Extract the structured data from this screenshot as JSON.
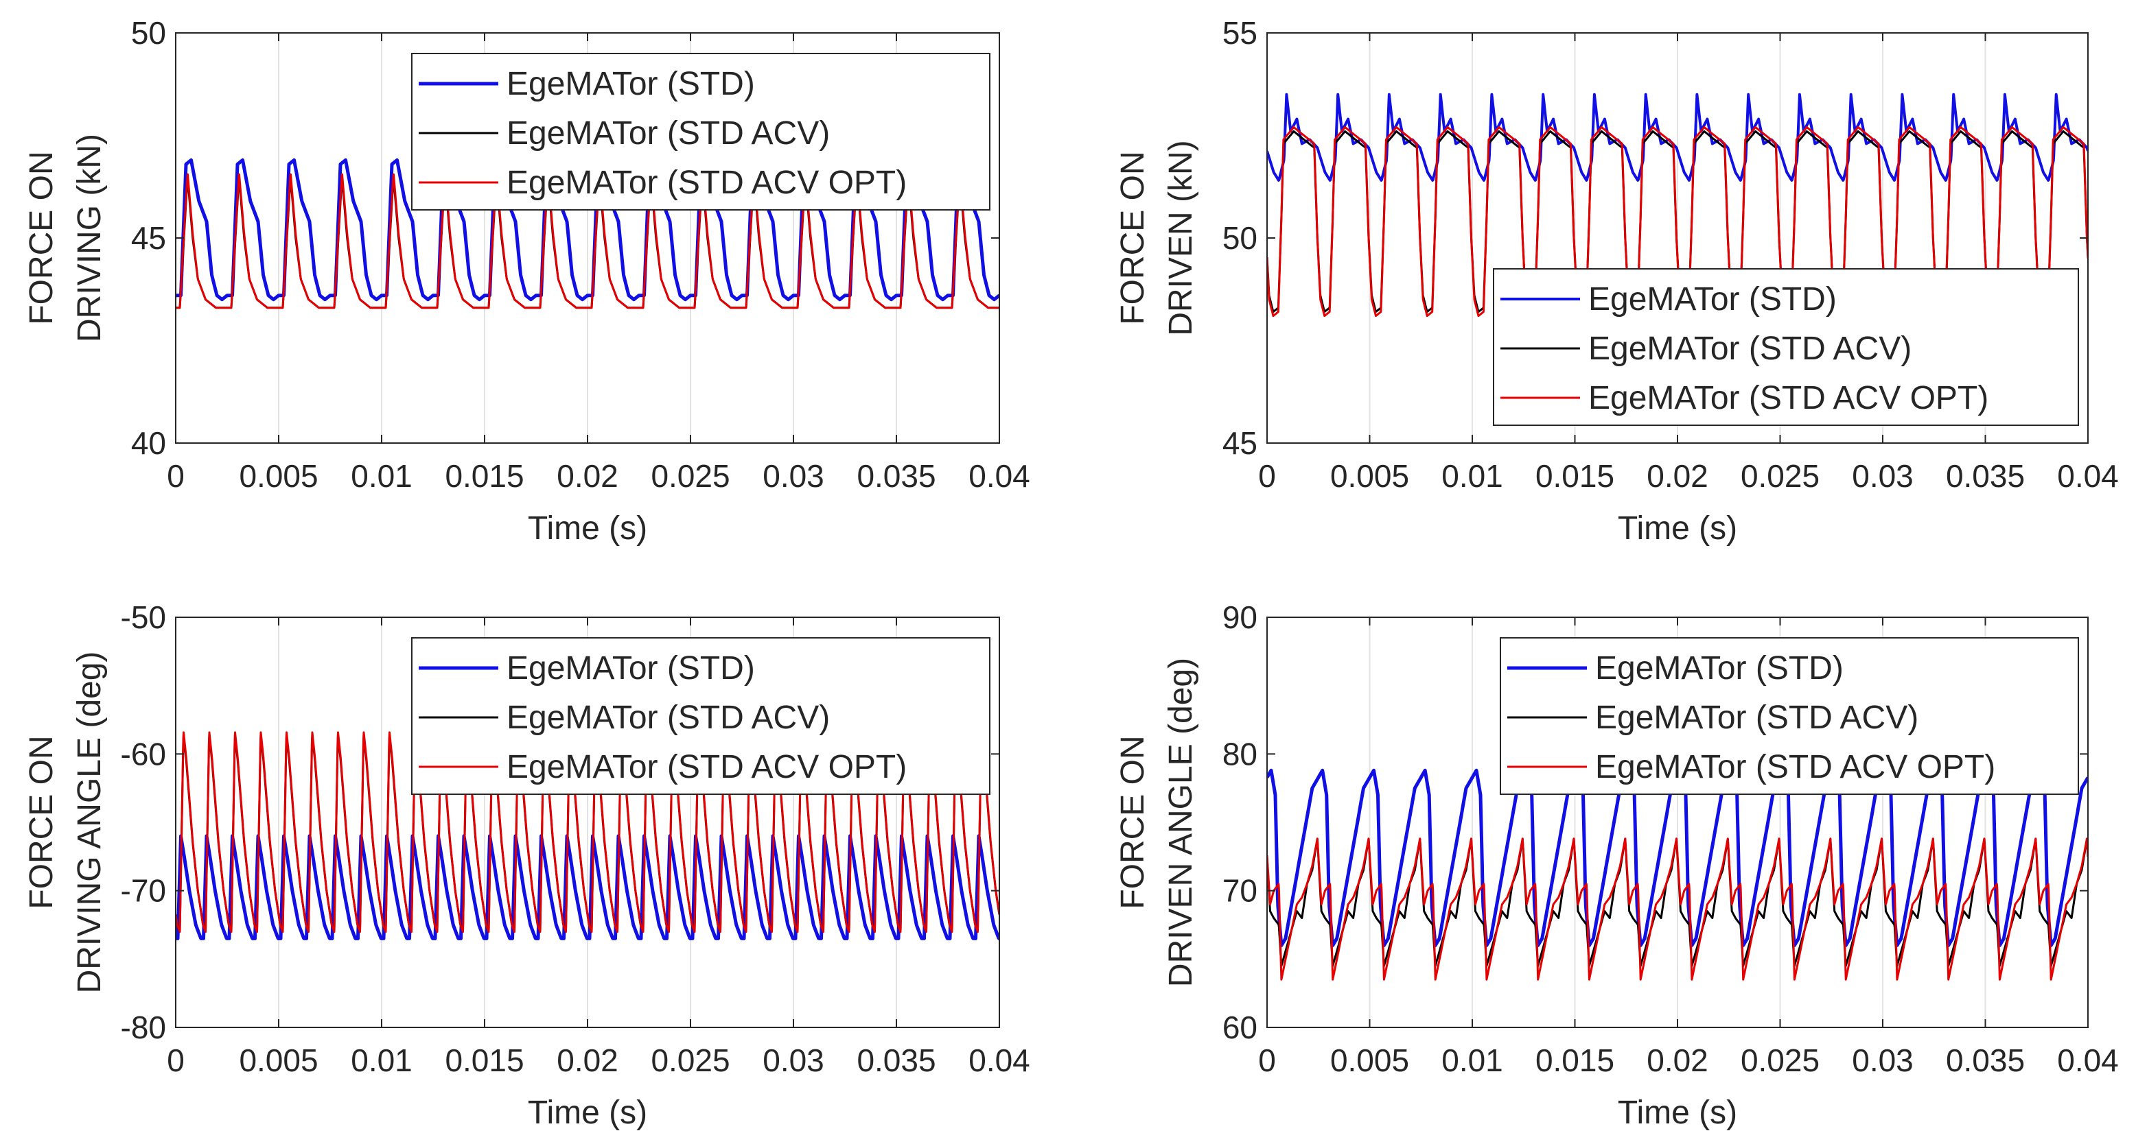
{
  "figure": {
    "background": "#ffffff",
    "axis_color": "#262626",
    "grid_color": "#e3e3e3"
  },
  "chart_data": [
    {
      "type": "line",
      "ylabel": [
        "FORCE ON",
        "DRIVING (kN)"
      ],
      "xlabel": "Time (s)",
      "xlim": [
        0,
        0.04
      ],
      "ylim": [
        40,
        50
      ],
      "xticks": [
        0,
        0.005,
        0.01,
        0.015,
        0.02,
        0.025,
        0.03,
        0.035,
        0.04
      ],
      "xtick_labels": [
        "0",
        "0.005",
        "0.01",
        "0.015",
        "0.02",
        "0.025",
        "0.03",
        "0.035",
        "0.04"
      ],
      "yticks": [
        40,
        45,
        50
      ],
      "ytick_labels": [
        "40",
        "45",
        "50"
      ],
      "grid": "x-only",
      "legend": {
        "location": "top-right",
        "entries": [
          "EgeMATor (STD)",
          "EgeMATor (STD ACV)",
          "EgeMATor (STD ACV OPT)"
        ]
      },
      "period_s": 0.0025,
      "series": [
        {
          "name": "EgeMATor (STD)",
          "color": "#1010e6",
          "width": 5,
          "wave": {
            "phase": 0.00025,
            "keys": [
              [
                0,
                43.6
              ],
              [
                0.1,
                46.8
              ],
              [
                0.2,
                46.9
              ],
              [
                0.35,
                45.9
              ],
              [
                0.5,
                45.4
              ],
              [
                0.6,
                44.1
              ],
              [
                0.7,
                43.6
              ],
              [
                0.8,
                43.5
              ],
              [
                0.9,
                43.6
              ],
              [
                1,
                43.6
              ]
            ]
          }
        },
        {
          "name": "EgeMATor (STD ACV)",
          "color": "#000000",
          "width": 3,
          "wave": {
            "phase": 0.0002,
            "keys": [
              [
                0,
                43.3
              ],
              [
                0.15,
                46.5
              ],
              [
                0.25,
                45.0
              ],
              [
                0.35,
                44.0
              ],
              [
                0.5,
                43.5
              ],
              [
                0.7,
                43.3
              ],
              [
                1,
                43.3
              ]
            ]
          }
        },
        {
          "name": "EgeMATor (STD ACV OPT)",
          "color": "#e60000",
          "width": 3,
          "wave": {
            "phase": 0.0002,
            "keys": [
              [
                0,
                43.3
              ],
              [
                0.15,
                46.6
              ],
              [
                0.25,
                45.1
              ],
              [
                0.35,
                44.0
              ],
              [
                0.5,
                43.5
              ],
              [
                0.7,
                43.3
              ],
              [
                1,
                43.3
              ]
            ]
          }
        }
      ]
    },
    {
      "type": "line",
      "ylabel": [
        "FORCE ON",
        "DRIVEN (kN)"
      ],
      "xlabel": "Time (s)",
      "xlim": [
        0,
        0.04
      ],
      "ylim": [
        45,
        55
      ],
      "xticks": [
        0,
        0.005,
        0.01,
        0.015,
        0.02,
        0.025,
        0.03,
        0.035,
        0.04
      ],
      "xtick_labels": [
        "0",
        "0.005",
        "0.01",
        "0.015",
        "0.02",
        "0.025",
        "0.03",
        "0.035",
        "0.04"
      ],
      "yticks": [
        45,
        50,
        55
      ],
      "ytick_labels": [
        "45",
        "50",
        "55"
      ],
      "grid": "x-only",
      "legend": {
        "location": "lower-right",
        "entries": [
          "EgeMATor (STD)",
          "EgeMATor (STD ACV)",
          "EgeMATor (STD ACV OPT)"
        ]
      },
      "period_s": 0.0025,
      "series": [
        {
          "name": "EgeMATor (STD)",
          "color": "#1010e6",
          "width": 4,
          "wave": {
            "phase": 0.00095,
            "keys": [
              [
                0,
                53.5
              ],
              [
                0.08,
                52.6
              ],
              [
                0.2,
                52.9
              ],
              [
                0.3,
                52.3
              ],
              [
                0.45,
                52.4
              ],
              [
                0.6,
                52.2
              ],
              [
                0.75,
                51.6
              ],
              [
                0.85,
                51.4
              ],
              [
                0.95,
                51.9
              ],
              [
                1,
                53.5
              ]
            ]
          }
        },
        {
          "name": "EgeMATor (STD ACV)",
          "color": "#000000",
          "width": 3,
          "wave": {
            "phase": 0.0008,
            "keys": [
              [
                0,
                52.3
              ],
              [
                0.2,
                52.6
              ],
              [
                0.4,
                52.4
              ],
              [
                0.6,
                52.2
              ],
              [
                0.66,
                50.0
              ],
              [
                0.72,
                48.6
              ],
              [
                0.8,
                48.2
              ],
              [
                0.9,
                48.3
              ],
              [
                0.96,
                50.5
              ],
              [
                1,
                52.3
              ]
            ]
          }
        },
        {
          "name": "EgeMATor (STD ACV OPT)",
          "color": "#e60000",
          "width": 3,
          "wave": {
            "phase": 0.0008,
            "keys": [
              [
                0,
                52.4
              ],
              [
                0.2,
                52.7
              ],
              [
                0.4,
                52.5
              ],
              [
                0.6,
                52.3
              ],
              [
                0.66,
                50.0
              ],
              [
                0.72,
                48.5
              ],
              [
                0.8,
                48.1
              ],
              [
                0.9,
                48.2
              ],
              [
                0.96,
                50.5
              ],
              [
                1,
                52.4
              ]
            ]
          }
        }
      ]
    },
    {
      "type": "line",
      "ylabel": [
        "FORCE ON",
        "DRIVING ANGLE (deg)"
      ],
      "xlabel": "Time (s)",
      "xlim": [
        0,
        0.04
      ],
      "ylim": [
        -80,
        -50
      ],
      "xticks": [
        0,
        0.005,
        0.01,
        0.015,
        0.02,
        0.025,
        0.03,
        0.035,
        0.04
      ],
      "xtick_labels": [
        "0",
        "0.005",
        "0.01",
        "0.015",
        "0.02",
        "0.025",
        "0.03",
        "0.035",
        "0.04"
      ],
      "yticks": [
        -80,
        -70,
        -60,
        -50
      ],
      "ytick_labels": [
        "-80",
        "-70",
        "-60",
        "-50"
      ],
      "grid": "x-only",
      "legend": {
        "location": "top-right",
        "entries": [
          "EgeMATor (STD)",
          "EgeMATor (STD ACV)",
          "EgeMATor (STD ACV OPT)"
        ]
      },
      "period_s": 0.00125,
      "series": [
        {
          "name": "EgeMATor (STD)",
          "color": "#1010e6",
          "width": 5,
          "wave": {
            "phase": 0.0001,
            "keys": [
              [
                0,
                -73.5
              ],
              [
                0.12,
                -66.0
              ],
              [
                0.25,
                -67.5
              ],
              [
                0.45,
                -70.0
              ],
              [
                0.7,
                -72.5
              ],
              [
                0.9,
                -73.5
              ],
              [
                1,
                -73.5
              ]
            ]
          }
        },
        {
          "name": "EgeMATor (STD ACV)",
          "color": "#000000",
          "width": 3,
          "wave": {
            "phase": 0.0002,
            "keys": [
              [
                0,
                -73.0
              ],
              [
                0.14,
                -58.5
              ],
              [
                0.25,
                -60.5
              ],
              [
                0.5,
                -66.5
              ],
              [
                0.7,
                -70.0
              ],
              [
                0.9,
                -72.5
              ],
              [
                1,
                -73.0
              ]
            ]
          }
        },
        {
          "name": "EgeMATor (STD ACV OPT)",
          "color": "#e60000",
          "width": 3,
          "wave": {
            "phase": 0.0002,
            "keys": [
              [
                0,
                -73.0
              ],
              [
                0.14,
                -58.3
              ],
              [
                0.25,
                -60.3
              ],
              [
                0.5,
                -66.4
              ],
              [
                0.7,
                -70.0
              ],
              [
                0.9,
                -72.5
              ],
              [
                1,
                -73.0
              ]
            ]
          }
        }
      ]
    },
    {
      "type": "line",
      "ylabel": [
        "FORCE ON",
        "DRIVEN ANGLE (deg)"
      ],
      "xlabel": "Time (s)",
      "xlim": [
        0,
        0.04
      ],
      "ylim": [
        60,
        90
      ],
      "xticks": [
        0,
        0.005,
        0.01,
        0.015,
        0.02,
        0.025,
        0.03,
        0.035,
        0.04
      ],
      "xtick_labels": [
        "0",
        "0.005",
        "0.01",
        "0.015",
        "0.02",
        "0.025",
        "0.03",
        "0.035",
        "0.04"
      ],
      "yticks": [
        60,
        70,
        80,
        90
      ],
      "ytick_labels": [
        "60",
        "70",
        "80",
        "90"
      ],
      "grid": "x-only",
      "legend": {
        "location": "top-right",
        "entries": [
          "EgeMATor (STD)",
          "EgeMATor (STD ACV)",
          "EgeMATor (STD ACV OPT)"
        ]
      },
      "period_s": 0.0025,
      "series": [
        {
          "name": "EgeMATor (STD)",
          "color": "#1010e6",
          "width": 5,
          "wave": {
            "phase": 0.0007,
            "keys": [
              [
                0,
                66.0
              ],
              [
                0.08,
                66.5
              ],
              [
                0.6,
                77.5
              ],
              [
                0.8,
                78.8
              ],
              [
                0.88,
                77.0
              ],
              [
                0.93,
                69.0
              ],
              [
                1,
                66.0
              ]
            ]
          }
        },
        {
          "name": "EgeMATor (STD ACV)",
          "color": "#000000",
          "width": 3,
          "wave": {
            "phase": 0.0007,
            "keys": [
              [
                0,
                64.5
              ],
              [
                0.3,
                68.5
              ],
              [
                0.4,
                68.0
              ],
              [
                0.5,
                70.5
              ],
              [
                0.6,
                71.5
              ],
              [
                0.7,
                73.8
              ],
              [
                0.78,
                68.5
              ],
              [
                0.85,
                68.0
              ],
              [
                0.95,
                67.5
              ],
              [
                1,
                64.5
              ]
            ]
          }
        },
        {
          "name": "EgeMATor (STD ACV OPT)",
          "color": "#e60000",
          "width": 3,
          "wave": {
            "phase": 0.0007,
            "keys": [
              [
                0,
                63.5
              ],
              [
                0.3,
                69.0
              ],
              [
                0.4,
                69.5
              ],
              [
                0.5,
                70.5
              ],
              [
                0.6,
                71.8
              ],
              [
                0.7,
                73.8
              ],
              [
                0.78,
                69.0
              ],
              [
                0.85,
                70.0
              ],
              [
                0.95,
                70.5
              ],
              [
                1,
                63.5
              ]
            ]
          }
        }
      ]
    }
  ]
}
